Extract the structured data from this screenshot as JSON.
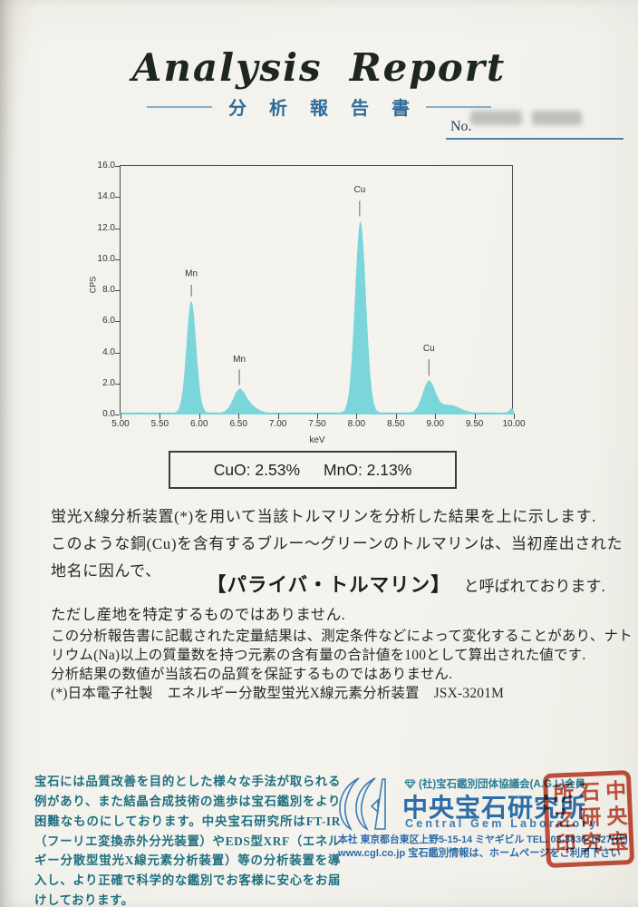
{
  "report": {
    "title_word1": "Analysis",
    "title_word2": "Report",
    "subtitle": "分 析 報 告 書",
    "no_label": "No."
  },
  "chart_data": {
    "type": "area",
    "title": "",
    "xlabel": "keV",
    "ylabel": "CPS",
    "xlim": [
      5.0,
      10.0
    ],
    "ylim": [
      0,
      16.0
    ],
    "x_ticks": [
      "5.00",
      "5.50",
      "6.00",
      "6.50",
      "7.00",
      "7.50",
      "8.00",
      "8.50",
      "9.00",
      "9.50",
      "10.00"
    ],
    "y_ticks": [
      "16.0",
      "14.0",
      "12.0",
      "10.0",
      "8.0",
      "6.0",
      "4.0",
      "2.0",
      "0.0"
    ],
    "grid": false,
    "legend": false,
    "fill_color": "#7bd6dc",
    "baseline_cps": 0.07,
    "peaks": [
      {
        "label": "Mn",
        "center_kev": 5.9,
        "height_cps": 7.2,
        "sigma_kev": 0.062
      },
      {
        "label": "Mn",
        "center_kev": 6.51,
        "height_cps": 1.45,
        "sigma_kev": 0.08
      },
      {
        "label": null,
        "center_kev": 6.66,
        "height_cps": 0.35,
        "sigma_kev": 0.09
      },
      {
        "label": "Cu",
        "center_kev": 8.05,
        "height_cps": 12.3,
        "sigma_kev": 0.07
      },
      {
        "label": "Cu",
        "center_kev": 8.92,
        "height_cps": 2.0,
        "sigma_kev": 0.08
      },
      {
        "label": null,
        "center_kev": 9.18,
        "height_cps": 0.5,
        "sigma_kev": 0.13
      },
      {
        "label": null,
        "center_kev": 9.97,
        "height_cps": 0.28,
        "sigma_kev": 0.03
      }
    ],
    "annotations": [
      {
        "text": "Mn",
        "x_kev": 5.9,
        "text_y_cps": 8.9,
        "line_from_cps": 8.35,
        "line_to_cps": 7.6
      },
      {
        "text": "Mn",
        "x_kev": 6.51,
        "text_y_cps": 3.4,
        "line_from_cps": 2.9,
        "line_to_cps": 1.9
      },
      {
        "text": "Cu",
        "x_kev": 8.04,
        "text_y_cps": 14.3,
        "line_from_cps": 13.75,
        "line_to_cps": 12.75
      },
      {
        "text": "Cu",
        "x_kev": 8.92,
        "text_y_cps": 4.1,
        "line_from_cps": 3.55,
        "line_to_cps": 2.5
      }
    ]
  },
  "result_box": {
    "cuo": "CuO: 2.53%",
    "mno": "MnO: 2.13%"
  },
  "body": {
    "para1_line1": "蛍光X線分析装置(*)を用いて当該トルマリンを分析した結果を上に示します.",
    "para1_line2": "このような銅(Cu)を含有するブルー～グリーンのトルマリンは、当初産出された",
    "para1_line3": "地名に因んで、",
    "highlight": "【パライバ・トルマリン】",
    "highlight_suffix": "と呼ばれております.",
    "para2": "ただし産地を特定するものではありません.",
    "note_line1": "この分析報告書に記載された定量結果は、測定条件などによって変化することがあり、ナト",
    "note_line2": "リウム(Na)以上の質量数を持つ元素の含有量の合計値を100として算出された値です.",
    "note_line3": "分析結果の数値が当該石の品質を保証するものではありません.",
    "note_line4": "(*)日本電子社製　エネルギー分散型蛍光X線元素分析装置　JSX-3201M"
  },
  "footer": {
    "notice": "宝石には品質改善を目的とした様々な手法が取られる例があり、また結晶合成技術の進歩は宝石鑑別をより困難なものにしております。中央宝石研究所はFT-IR（フーリエ変換赤外分光装置）やEDS型XRF（エネルギー分散型蛍光X線元素分析装置）等の分析装置を導入し、より正確で科学的な鑑別でお客様に安心をお届けしております。",
    "membership": "(社)宝石鑑別団体協議会(A.G.L)会員",
    "lab_name_jp": "中央宝石研究所",
    "lab_name_en": "Central Gem Laboratory",
    "address": "本社 東京都台東区上野5-15-14 ミヤギビル TEL. 03-3836-1627(代)",
    "web": "www.cgl.co.jp 宝石鑑別情報は、ホームページをご利用下さい",
    "seal_col_right": "中央宝",
    "seal_col_mid": "石研究",
    "seal_col_left": "所之印"
  },
  "colors": {
    "spectrum_fill": "#7bd6dc",
    "heading_blue": "#306b98",
    "cgl_blue": "#2c6ca8",
    "notice_teal": "#1f7080",
    "seal_red": "#c4442f",
    "title_ink": "#1d261f"
  }
}
